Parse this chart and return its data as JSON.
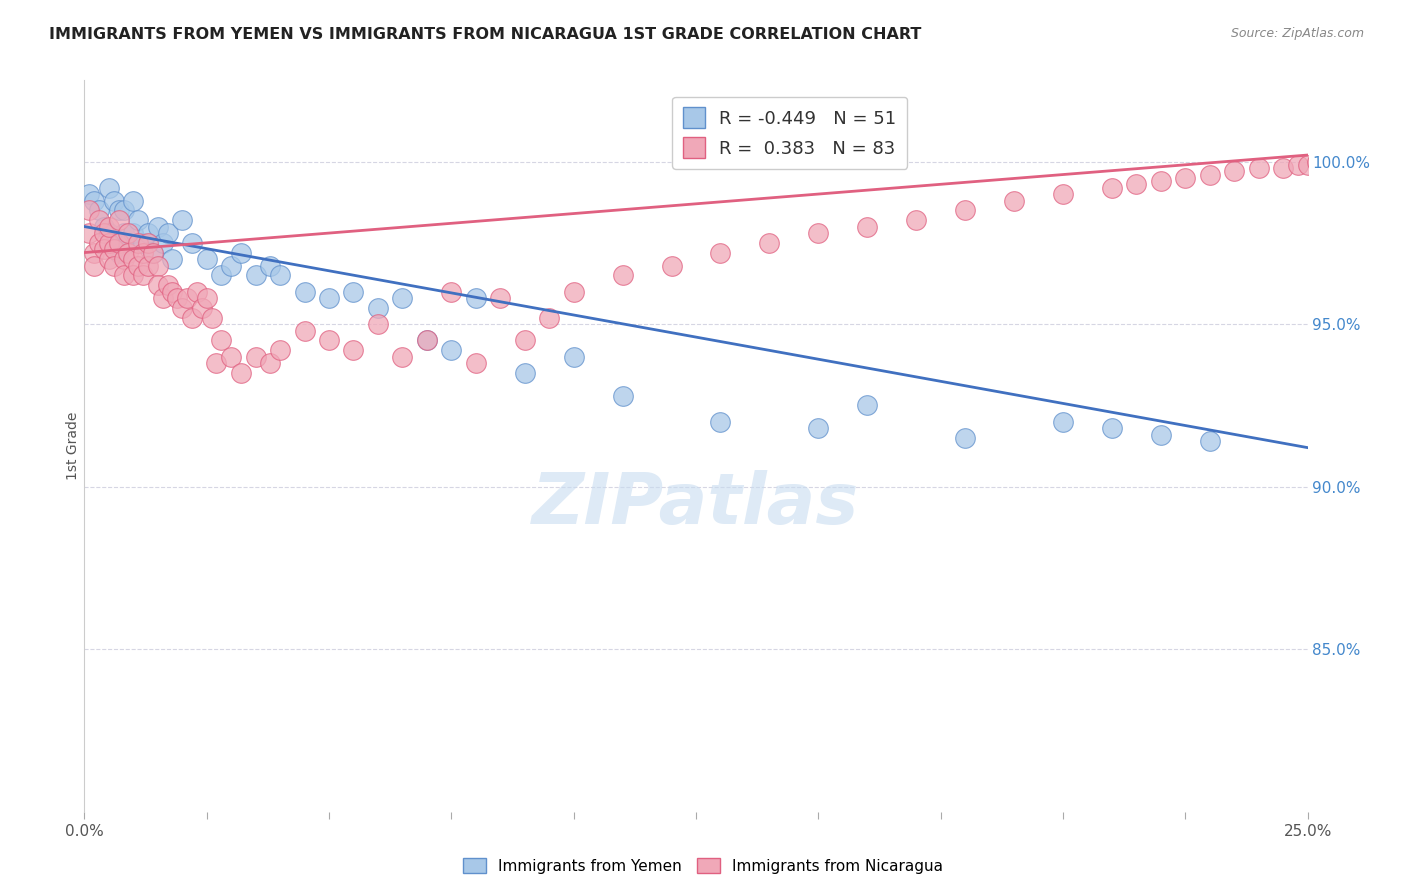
{
  "title": "IMMIGRANTS FROM YEMEN VS IMMIGRANTS FROM NICARAGUA 1ST GRADE CORRELATION CHART",
  "source": "Source: ZipAtlas.com",
  "ylabel": "1st Grade",
  "y_ticks": [
    0.85,
    0.9,
    0.95,
    1.0
  ],
  "y_tick_labels": [
    "85.0%",
    "90.0%",
    "95.0%",
    "100.0%"
  ],
  "x_range": [
    0.0,
    0.25
  ],
  "y_range": [
    0.8,
    1.025
  ],
  "legend_blue_r": "-0.449",
  "legend_blue_n": "51",
  "legend_pink_r": "0.383",
  "legend_pink_n": "83",
  "legend_blue_label": "Immigrants from Yemen",
  "legend_pink_label": "Immigrants from Nicaragua",
  "blue_color": "#A8C8E8",
  "pink_color": "#F0A8B8",
  "blue_edge_color": "#6090CC",
  "pink_edge_color": "#E06080",
  "blue_line_color": "#4070C0",
  "pink_line_color": "#E06080",
  "watermark_text": "ZIPatlas",
  "blue_trend_x0": 0.0,
  "blue_trend_y0": 0.98,
  "blue_trend_x1": 0.25,
  "blue_trend_y1": 0.912,
  "pink_trend_x0": 0.0,
  "pink_trend_y0": 0.972,
  "pink_trend_x1": 0.25,
  "pink_trend_y1": 1.002,
  "blue_x": [
    0.001,
    0.002,
    0.003,
    0.004,
    0.005,
    0.005,
    0.006,
    0.006,
    0.007,
    0.007,
    0.008,
    0.008,
    0.009,
    0.01,
    0.01,
    0.011,
    0.012,
    0.013,
    0.014,
    0.015,
    0.016,
    0.017,
    0.018,
    0.02,
    0.022,
    0.025,
    0.028,
    0.03,
    0.032,
    0.035,
    0.038,
    0.04,
    0.045,
    0.05,
    0.055,
    0.06,
    0.065,
    0.07,
    0.075,
    0.08,
    0.09,
    0.1,
    0.11,
    0.13,
    0.15,
    0.16,
    0.18,
    0.2,
    0.21,
    0.22,
    0.23
  ],
  "blue_y": [
    0.99,
    0.988,
    0.985,
    0.98,
    0.992,
    0.978,
    0.988,
    0.975,
    0.985,
    0.972,
    0.978,
    0.985,
    0.975,
    0.988,
    0.978,
    0.982,
    0.975,
    0.978,
    0.972,
    0.98,
    0.975,
    0.978,
    0.97,
    0.982,
    0.975,
    0.97,
    0.965,
    0.968,
    0.972,
    0.965,
    0.968,
    0.965,
    0.96,
    0.958,
    0.96,
    0.955,
    0.958,
    0.945,
    0.942,
    0.958,
    0.935,
    0.94,
    0.928,
    0.92,
    0.918,
    0.925,
    0.915,
    0.92,
    0.918,
    0.916,
    0.914
  ],
  "pink_x": [
    0.001,
    0.001,
    0.002,
    0.002,
    0.003,
    0.003,
    0.004,
    0.004,
    0.005,
    0.005,
    0.005,
    0.006,
    0.006,
    0.007,
    0.007,
    0.008,
    0.008,
    0.009,
    0.009,
    0.01,
    0.01,
    0.011,
    0.011,
    0.012,
    0.012,
    0.013,
    0.013,
    0.014,
    0.015,
    0.015,
    0.016,
    0.017,
    0.018,
    0.019,
    0.02,
    0.021,
    0.022,
    0.023,
    0.024,
    0.025,
    0.026,
    0.027,
    0.028,
    0.03,
    0.032,
    0.035,
    0.038,
    0.04,
    0.045,
    0.05,
    0.055,
    0.06,
    0.065,
    0.07,
    0.075,
    0.08,
    0.085,
    0.09,
    0.095,
    0.1,
    0.11,
    0.12,
    0.13,
    0.14,
    0.15,
    0.16,
    0.17,
    0.18,
    0.19,
    0.2,
    0.21,
    0.215,
    0.22,
    0.225,
    0.23,
    0.235,
    0.24,
    0.245,
    0.248,
    0.25,
    0.252,
    0.254,
    0.255
  ],
  "pink_y": [
    0.978,
    0.985,
    0.972,
    0.968,
    0.975,
    0.982,
    0.978,
    0.973,
    0.97,
    0.975,
    0.98,
    0.973,
    0.968,
    0.975,
    0.982,
    0.97,
    0.965,
    0.972,
    0.978,
    0.97,
    0.965,
    0.975,
    0.968,
    0.972,
    0.965,
    0.968,
    0.975,
    0.972,
    0.968,
    0.962,
    0.958,
    0.962,
    0.96,
    0.958,
    0.955,
    0.958,
    0.952,
    0.96,
    0.955,
    0.958,
    0.952,
    0.938,
    0.945,
    0.94,
    0.935,
    0.94,
    0.938,
    0.942,
    0.948,
    0.945,
    0.942,
    0.95,
    0.94,
    0.945,
    0.96,
    0.938,
    0.958,
    0.945,
    0.952,
    0.96,
    0.965,
    0.968,
    0.972,
    0.975,
    0.978,
    0.98,
    0.982,
    0.985,
    0.988,
    0.99,
    0.992,
    0.993,
    0.994,
    0.995,
    0.996,
    0.997,
    0.998,
    0.998,
    0.999,
    0.999,
    1.0,
    1.0,
    1.0
  ]
}
